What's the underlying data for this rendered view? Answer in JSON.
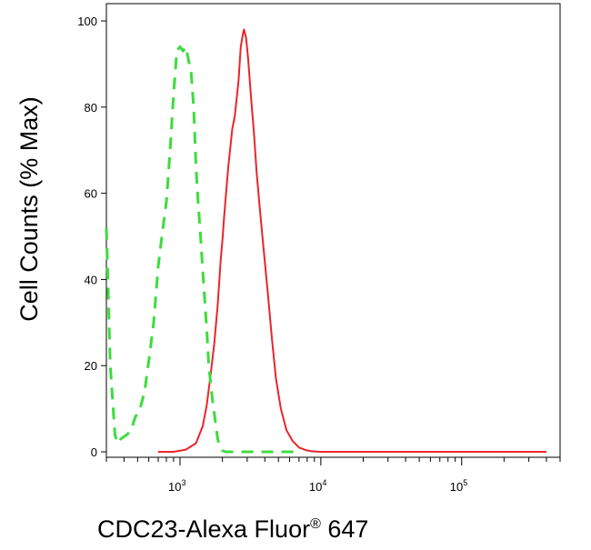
{
  "chart_data": {
    "type": "line",
    "title": "",
    "xlabel": {
      "prefix": "CDC23-Alexa Fluor",
      "sup": "®",
      "suffix": " 647"
    },
    "ylabel": "Cell Counts (% Max)",
    "x_scale": "log",
    "xlim": [
      300,
      500000
    ],
    "ylim": [
      0,
      100
    ],
    "y_ticks": [
      0,
      20,
      40,
      60,
      80,
      100
    ],
    "y_tick_labels": [
      "0",
      "20",
      "40",
      "60",
      "80",
      "100"
    ],
    "x_ticks": [
      {
        "base": "10",
        "exp": "3",
        "value": 1000
      },
      {
        "base": "10",
        "exp": "4",
        "value": 10000
      },
      {
        "base": "10",
        "exp": "5",
        "value": 100000
      }
    ],
    "series": [
      {
        "color": "#e8262b",
        "style": "solid",
        "x": [
          700,
          900,
          1100,
          1300,
          1450,
          1550,
          1650,
          1750,
          1850,
          1950,
          2000,
          2050,
          2200,
          2350,
          2450,
          2600,
          2700,
          2800,
          2850,
          2950,
          3050,
          3200,
          3350,
          3500,
          3650,
          3900,
          4200,
          4500,
          4800,
          5200,
          5700,
          6300,
          7000,
          7800,
          8700,
          10000,
          13000,
          20000,
          50000,
          100000,
          200000,
          400000
        ],
        "y": [
          0,
          0,
          0.5,
          2,
          6,
          11,
          18,
          25,
          34,
          45,
          49,
          54,
          66,
          75,
          78,
          86,
          94,
          97,
          98,
          96,
          91,
          82,
          74,
          65,
          58,
          48,
          37,
          26,
          17,
          10,
          5,
          2.5,
          1,
          0.4,
          0.1,
          0,
          0,
          0,
          0,
          0,
          0,
          0
        ]
      },
      {
        "color": "#3ddc3d",
        "style": "dashed",
        "x": [
          300,
          320,
          345,
          360,
          380,
          420,
          450,
          480,
          520,
          560,
          600,
          650,
          700,
          750,
          800,
          850,
          900,
          950,
          1000,
          1050,
          1100,
          1200,
          1250,
          1300,
          1350,
          1400,
          1450,
          1550,
          1600,
          1700,
          1800,
          1850,
          1900,
          2000,
          2100,
          3000,
          5000,
          7000
        ],
        "y": [
          52,
          20,
          4,
          2,
          3,
          4,
          5,
          8,
          10,
          14,
          21,
          30,
          43,
          51,
          58,
          70,
          83,
          93,
          94,
          93,
          94,
          88,
          80,
          66,
          57,
          50,
          42,
          28,
          20,
          12,
          6,
          3,
          1.5,
          0.3,
          0,
          0,
          0,
          0
        ]
      }
    ]
  }
}
